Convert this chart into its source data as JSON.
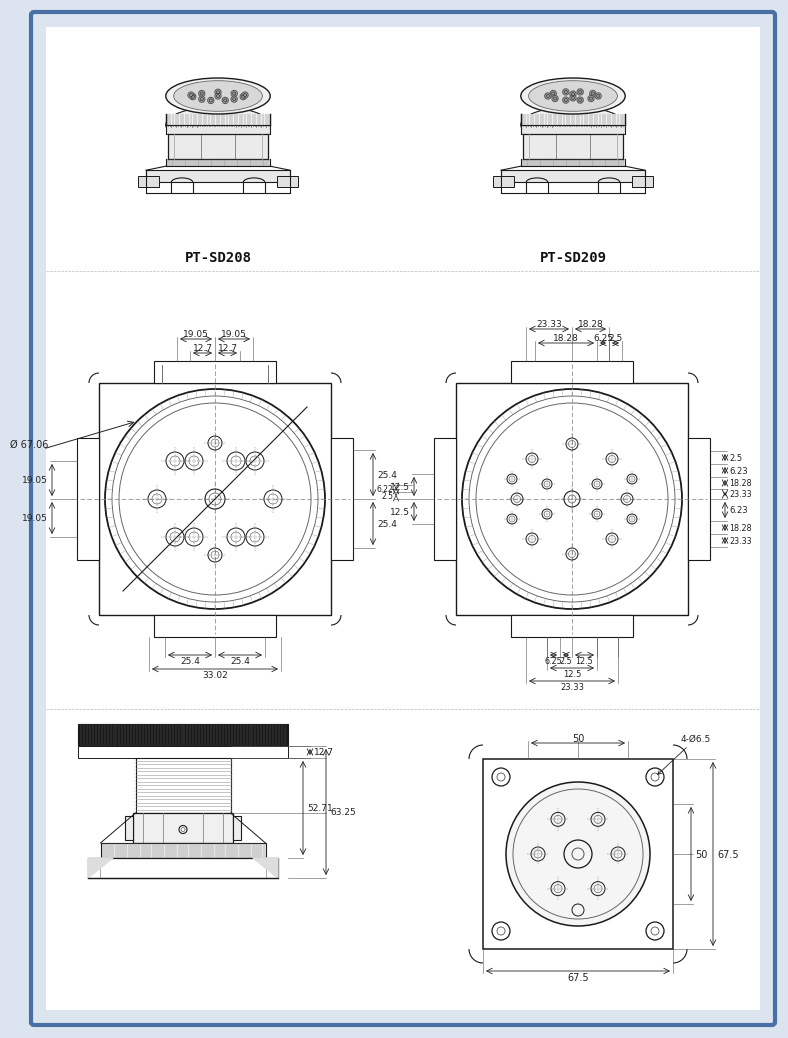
{
  "background_color": "#dce5ef",
  "border_color": "#5577aa",
  "line_color": "#1a1a1a",
  "dim_color": "#222222",
  "text_color": "#111111",
  "model_left": "PT-SD208",
  "model_right": "PT-SD209",
  "phi_label": "Ø 67.06",
  "dims_front_corner": "4-Ø6.5"
}
